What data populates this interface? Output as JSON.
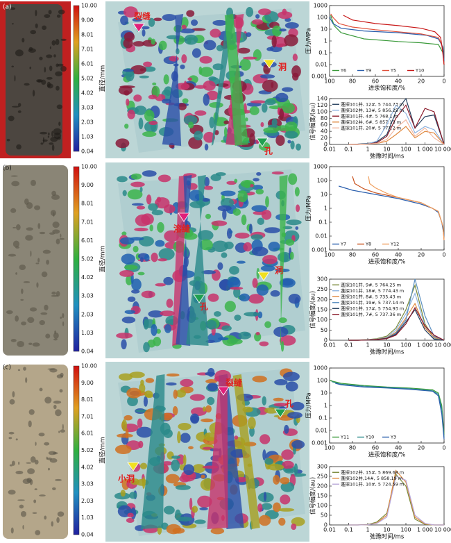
{
  "panels": [
    {
      "label": "(a)",
      "colorbar": {
        "label": "直径/mm",
        "ticks": [
          "10.00",
          "9.00",
          "8.01",
          "7.01",
          "6.01",
          "5.02",
          "4.02",
          "3.03",
          "2.03",
          "1.03",
          "0.04"
        ]
      },
      "annotations": [
        "裂缝",
        "洞",
        "孔"
      ]
    },
    {
      "label": "(b)",
      "colorbar": {
        "label": "直径/mm",
        "ticks": [
          "10.00",
          "9.00",
          "8.01",
          "7.01",
          "6.01",
          "5.02",
          "4.02",
          "3.03",
          "2.03",
          "1.03",
          "0.04"
        ]
      },
      "annotations": [
        "溶缝",
        "洞",
        "孔"
      ]
    },
    {
      "label": "(c)",
      "colorbar": {
        "label": "直径/mm",
        "ticks": [
          "10.00",
          "9.00",
          "8.01",
          "7.01",
          "6.01",
          "5.02",
          "4.02",
          "3.03",
          "2.03",
          "1.03",
          "0.04"
        ]
      },
      "annotations": [
        "裂缝",
        "孔",
        "小洞"
      ]
    }
  ],
  "chart_data": [
    {
      "type": "line",
      "xlabel": "进汞饱和度/%",
      "ylabel": "压力/MPa",
      "xlim": [
        100,
        0
      ],
      "ylim": [
        0.001,
        1000
      ],
      "ylog": true,
      "xticks": [
        100,
        80,
        60,
        40,
        20,
        0
      ],
      "yticks": [
        0.001,
        0.01,
        0.1,
        1,
        10,
        100,
        1000
      ],
      "legend": "lower left",
      "series": [
        {
          "name": "Y6",
          "color": "#3a9a3a",
          "x": [
            99,
            96,
            90,
            70,
            40,
            20,
            5,
            1,
            0
          ],
          "values": [
            150,
            20,
            5,
            1.5,
            0.9,
            0.7,
            0.5,
            0.1,
            0.01
          ]
        },
        {
          "name": "Y9",
          "color": "#2b5fad",
          "x": [
            100,
            97,
            90,
            70,
            40,
            15,
            5,
            1,
            0
          ],
          "values": [
            100,
            30,
            12,
            7,
            5,
            3,
            1.5,
            0.3,
            0.02
          ]
        },
        {
          "name": "Y5",
          "color": "#e0503a",
          "x": [
            99,
            97,
            92,
            80,
            60,
            40,
            20,
            5,
            2,
            0
          ],
          "values": [
            200,
            100,
            30,
            15,
            9,
            6,
            4,
            2,
            0.5,
            0.01
          ]
        },
        {
          "name": "Y10",
          "color": "#c81818",
          "x": [
            88,
            80,
            60,
            40,
            20,
            8,
            3,
            1,
            0
          ],
          "values": [
            150,
            60,
            30,
            20,
            12,
            6,
            2,
            0.1,
            0.01
          ]
        }
      ]
    },
    {
      "type": "line",
      "xlabel": "弛豫时间/ms",
      "ylabel": "信号幅度/(au)",
      "xlim": [
        0.01,
        10000
      ],
      "xlog": true,
      "ylim": [
        0,
        140
      ],
      "xticks": [
        0.01,
        0.1,
        1,
        10,
        100,
        {
          "value": 1000,
          "label": "1 000"
        },
        {
          "value": 10000,
          "label": "10 000"
        }
      ],
      "yticks": [
        0,
        20,
        40,
        60,
        80,
        100,
        120,
        140
      ],
      "legend": "upper left",
      "series": [
        {
          "name": "蓬探101井, 12#, 5 744.73 m",
          "color": "#26405e",
          "x": [
            0.1,
            0.3,
            1,
            3,
            10,
            30,
            100,
            300,
            1000,
            3000,
            10000
          ],
          "values": [
            0,
            1,
            3,
            8,
            30,
            100,
            140,
            50,
            85,
            90,
            0
          ]
        },
        {
          "name": "蓬探102井, 13#, 5 856.25 m",
          "color": "#8fb4e0",
          "x": [
            0.1,
            0.3,
            1,
            3,
            10,
            30,
            100,
            300,
            1000,
            3000,
            10000
          ],
          "values": [
            0,
            0,
            2,
            10,
            60,
            120,
            95,
            35,
            55,
            45,
            0
          ]
        },
        {
          "name": "蓬探101井, 4#, 5 768.1 m",
          "color": "#8a1a2a",
          "x": [
            0.1,
            0.3,
            1,
            3,
            10,
            30,
            100,
            300,
            1000,
            3000,
            10000
          ],
          "values": [
            0,
            0,
            1,
            5,
            25,
            80,
            120,
            50,
            110,
            100,
            0
          ]
        },
        {
          "name": "蓬探102井, 6#, 5 857.13 m",
          "color": "#e08a40",
          "x": [
            0.1,
            0.3,
            1,
            3,
            10,
            30,
            100,
            300,
            1000,
            3000,
            10000
          ],
          "values": [
            0,
            0,
            1,
            3,
            10,
            30,
            55,
            20,
            40,
            35,
            0
          ]
        },
        {
          "name": "蓬探101井, 20#, 5 777.2 m",
          "color": "#f2b8a0",
          "x": [
            0.1,
            0.3,
            1,
            3,
            10,
            30,
            100,
            300,
            1000,
            3000,
            10000
          ],
          "values": [
            0,
            0,
            1,
            3,
            15,
            50,
            75,
            25,
            50,
            20,
            0
          ]
        }
      ]
    },
    {
      "type": "line",
      "xlabel": "进汞饱和度/%",
      "ylabel": "压力/MPa",
      "xlim": [
        100,
        0
      ],
      "ylim": [
        0.001,
        1000
      ],
      "ylog": true,
      "xticks": [
        100,
        80,
        60,
        40,
        20,
        0
      ],
      "yticks": [
        0.001,
        0.01,
        0.1,
        1,
        10,
        100,
        1000
      ],
      "legend": "lower left",
      "series": [
        {
          "name": "Y7",
          "color": "#2b5fad",
          "x": [
            92,
            80,
            60,
            40,
            20,
            10,
            5,
            2,
            0
          ],
          "values": [
            40,
            20,
            10,
            5,
            2,
            1,
            0.5,
            0.1,
            0.01
          ]
        },
        {
          "name": "Y8",
          "color": "#c8501a",
          "x": [
            80,
            78,
            70,
            60,
            40,
            20,
            5,
            1,
            0
          ],
          "values": [
            200,
            60,
            25,
            13,
            6,
            2.5,
            0.6,
            0.05,
            0.005
          ]
        },
        {
          "name": "Y12",
          "color": "#f0a060",
          "x": [
            66,
            65,
            60,
            50,
            40,
            20,
            5,
            1,
            0
          ],
          "values": [
            200,
            60,
            30,
            12,
            6,
            2.5,
            0.6,
            0.05,
            0.005
          ]
        }
      ]
    },
    {
      "type": "line",
      "xlabel": "弛豫时间/ms",
      "ylabel": "信号幅度/(au)",
      "xlim": [
        0.01,
        10000
      ],
      "xlog": true,
      "ylim": [
        0,
        300
      ],
      "xticks": [
        0.01,
        0.1,
        1,
        10,
        100,
        {
          "value": 1000,
          "label": "1 000"
        },
        {
          "value": 10000,
          "label": "10 000"
        }
      ],
      "yticks": [
        0,
        50,
        100,
        150,
        200,
        250,
        300
      ],
      "legend": "upper left",
      "series": [
        {
          "name": "蓬探101井, 9#, 5 764.25 m",
          "color": "#7a8a3a",
          "x": [
            0.1,
            0.3,
            1,
            3,
            10,
            30,
            100,
            300,
            1000,
            3000,
            10000
          ],
          "values": [
            0,
            1,
            3,
            8,
            20,
            60,
            150,
            270,
            80,
            10,
            0
          ]
        },
        {
          "name": "蓬探101井, 18#, 5 774.43 m",
          "color": "#8fb4e0",
          "x": [
            0.1,
            0.3,
            1,
            3,
            10,
            30,
            100,
            300,
            1000,
            3000,
            10000
          ],
          "values": [
            0,
            0,
            2,
            6,
            15,
            50,
            130,
            230,
            70,
            8,
            0
          ]
        },
        {
          "name": "蓬探101井, 8#, 5 735.43 m",
          "color": "#e08a40",
          "x": [
            0.1,
            0.3,
            1,
            3,
            10,
            30,
            100,
            300,
            1000,
            3000,
            10000
          ],
          "values": [
            0,
            0,
            1,
            5,
            12,
            40,
            110,
            180,
            60,
            15,
            0
          ]
        },
        {
          "name": "蓬探101井, 19#, 5 737.14 m",
          "color": "#5a8fc0",
          "x": [
            0.1,
            0.3,
            1,
            3,
            10,
            30,
            100,
            300,
            1000,
            3000,
            10000
          ],
          "values": [
            0,
            0,
            1,
            4,
            10,
            35,
            100,
            300,
            120,
            20,
            0
          ]
        },
        {
          "name": "蓬探101井, 17#, 5 754.93 m",
          "color": "#26405e",
          "x": [
            0.1,
            0.3,
            1,
            3,
            10,
            30,
            100,
            300,
            1000,
            3000,
            10000
          ],
          "values": [
            0,
            0,
            1,
            4,
            10,
            30,
            90,
            150,
            50,
            5,
            0
          ]
        },
        {
          "name": "蓬探101井, 7#, 5 737.36 m",
          "color": "#8a1a2a",
          "x": [
            0.1,
            0.3,
            1,
            3,
            10,
            30,
            100,
            300,
            1000,
            3000,
            10000
          ],
          "values": [
            0,
            0,
            1,
            3,
            8,
            25,
            80,
            160,
            70,
            25,
            0
          ]
        }
      ]
    },
    {
      "type": "line",
      "xlabel": "进汞饱和度/%",
      "ylabel": "压力/MPa",
      "xlim": [
        100,
        0
      ],
      "ylim": [
        0.001,
        1000
      ],
      "ylog": true,
      "xticks": [
        100,
        80,
        60,
        40,
        20,
        0
      ],
      "yticks": [
        0.001,
        0.01,
        0.1,
        1,
        10,
        100,
        1000
      ],
      "legend": "lower left",
      "series": [
        {
          "name": "Y11",
          "color": "#3a9a3a",
          "x": [
            100,
            90,
            70,
            50,
            30,
            10,
            5,
            2,
            0
          ],
          "values": [
            100,
            60,
            40,
            30,
            25,
            18,
            10,
            1,
            0.005
          ]
        },
        {
          "name": "Y10",
          "color": "#2a8a8a",
          "x": [
            98,
            90,
            70,
            50,
            30,
            10,
            5,
            2,
            0
          ],
          "values": [
            80,
            50,
            35,
            28,
            22,
            15,
            8,
            0.5,
            0.003
          ]
        },
        {
          "name": "Y3",
          "color": "#2b5fad",
          "x": [
            95,
            90,
            70,
            50,
            30,
            10,
            5,
            2,
            0
          ],
          "values": [
            60,
            45,
            30,
            25,
            20,
            14,
            6,
            0.2,
            0.002
          ]
        }
      ]
    },
    {
      "type": "line",
      "xlabel": "弛豫时间/ms",
      "ylabel": "信号幅度/(au)",
      "xlim": [
        0.01,
        10000
      ],
      "xlog": true,
      "ylim": [
        0,
        300
      ],
      "xticks": [
        0.01,
        0.1,
        1,
        10,
        100,
        {
          "value": 1000,
          "label": "1 000"
        },
        {
          "value": 10000,
          "label": "10 000"
        }
      ],
      "yticks": [
        0,
        50,
        100,
        150,
        200,
        250,
        300
      ],
      "legend": "upper left",
      "series": [
        {
          "name": "蓬探102井, 15#, 5 869.68 m",
          "color": "#7a8a3a",
          "x": [
            0.1,
            0.3,
            1,
            3,
            10,
            30,
            100,
            300,
            1000,
            3000,
            10000
          ],
          "values": [
            0,
            0,
            2,
            15,
            60,
            260,
            200,
            30,
            3,
            0,
            0
          ]
        },
        {
          "name": "蓬探102井,14#, 5 858.19 m",
          "color": "#e08a40",
          "x": [
            0.1,
            0.3,
            1,
            3,
            10,
            30,
            100,
            300,
            1000,
            3000,
            10000
          ],
          "values": [
            0,
            0,
            1,
            10,
            50,
            280,
            220,
            40,
            5,
            0,
            0
          ]
        },
        {
          "name": "蓬探101井, 10#, 5 724.59 m",
          "color": "#b8a8d8",
          "x": [
            0.1,
            0.3,
            1,
            3,
            10,
            30,
            100,
            300,
            1000,
            3000,
            10000
          ],
          "values": [
            0,
            0,
            1,
            8,
            40,
            250,
            230,
            50,
            8,
            0,
            0
          ]
        }
      ]
    }
  ]
}
